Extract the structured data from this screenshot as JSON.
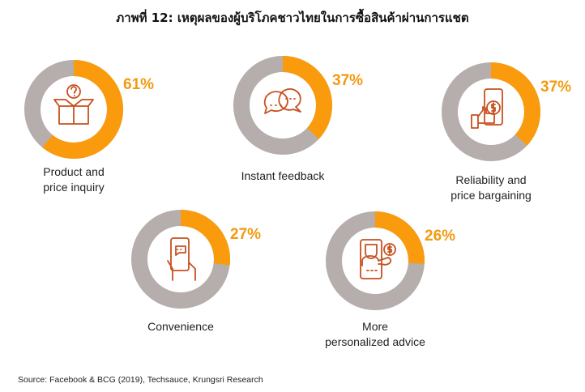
{
  "chart_data": {
    "type": "pie",
    "subtype": "donut-multiples",
    "title": "ภาพที่ 12: เหตุผลของผู้บริโภคชาวไทยในการซื้อสินค้าผ่านการแชต",
    "items": [
      {
        "label_lines": [
          "Product and",
          "price inquiry"
        ],
        "value": 61,
        "display": "61%",
        "icon": "box-question-icon"
      },
      {
        "label_lines": [
          "Instant feedback"
        ],
        "value": 37,
        "display": "37%",
        "icon": "chat-bubbles-icon"
      },
      {
        "label_lines": [
          "Reliability and",
          "price bargaining"
        ],
        "value": 37,
        "display": "37%",
        "icon": "phone-thumbs-up-dollar-icon"
      },
      {
        "label_lines": [
          "Convenience"
        ],
        "value": 27,
        "display": "27%",
        "icon": "hand-phone-chat-icon"
      },
      {
        "label_lines": [
          "More",
          "personalized advice"
        ],
        "value": 26,
        "display": "26%",
        "icon": "phone-advisor-dollar-icon"
      }
    ],
    "unit": "%",
    "source": "Source: Facebook & BCG (2019), Techsauce, Krungsri Research",
    "colors": {
      "value": "#F99B0C",
      "remainder": "#B5AEAD",
      "icon": "#C8501E",
      "percent_text": "#F39A10"
    }
  }
}
